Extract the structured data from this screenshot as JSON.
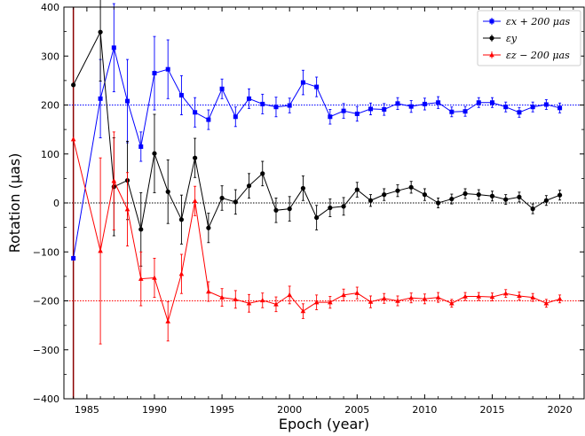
{
  "chart_data": {
    "type": "line",
    "xlabel": "Epoch (year)",
    "ylabel": "Rotation (μas)",
    "xlim": [
      1983.3,
      2021.8
    ],
    "ylim": [
      -400,
      400
    ],
    "x_ticks": [
      1985,
      1990,
      1995,
      2000,
      2005,
      2010,
      2015,
      2020
    ],
    "x_tick_labels": [
      "1985",
      "1990",
      "1995",
      "2000",
      "2005",
      "2010",
      "2015",
      "2020"
    ],
    "y_ticks": [
      -400,
      -300,
      -200,
      -100,
      0,
      100,
      200,
      300,
      400
    ],
    "y_tick_labels": [
      "−400",
      "−300",
      "−200",
      "−100",
      "0",
      "100",
      "200",
      "300",
      "400"
    ],
    "reference_lines": [
      {
        "y": 200,
        "color": "#0000ff",
        "style": "dotted"
      },
      {
        "y": 0,
        "color": "#000000",
        "style": "dotted"
      },
      {
        "y": -200,
        "color": "#ff0000",
        "style": "dotted"
      }
    ],
    "vertical_line": {
      "x": 1984,
      "color": "#8b0000"
    },
    "legend_position": "top-right",
    "series": [
      {
        "name": "εx + 200 μas",
        "color": "#0000ff",
        "marker": "square",
        "x": [
          1984,
          1986,
          1987,
          1988,
          1989,
          1990,
          1991,
          1992,
          1993,
          1994,
          1995,
          1996,
          1997,
          1998,
          1999,
          2000,
          2001,
          2002,
          2003,
          2004,
          2005,
          2006,
          2007,
          2008,
          2009,
          2010,
          2011,
          2012,
          2013,
          2014,
          2015,
          2016,
          2017,
          2018,
          2019,
          2020
        ],
        "y": [
          -113,
          213,
          317,
          208,
          115,
          265,
          273,
          220,
          185,
          170,
          233,
          176,
          213,
          202,
          196,
          199,
          246,
          237,
          176,
          188,
          182,
          192,
          191,
          203,
          197,
          202,
          205,
          186,
          187,
          205,
          205,
          196,
          185,
          196,
          201,
          194
        ],
        "err": [
          0,
          80,
          90,
          85,
          30,
          75,
          60,
          40,
          30,
          20,
          20,
          20,
          20,
          20,
          20,
          15,
          25,
          20,
          15,
          15,
          15,
          12,
          12,
          12,
          12,
          12,
          12,
          10,
          10,
          10,
          10,
          10,
          10,
          10,
          10,
          10
        ]
      },
      {
        "name": "εy",
        "color": "#000000",
        "marker": "circle",
        "x": [
          1984,
          1986,
          1987,
          1988,
          1989,
          1990,
          1991,
          1992,
          1993,
          1994,
          1995,
          1996,
          1997,
          1998,
          1999,
          2000,
          2001,
          2002,
          2003,
          2004,
          2005,
          2006,
          2007,
          2008,
          2009,
          2010,
          2011,
          2012,
          2013,
          2014,
          2015,
          2016,
          2017,
          2018,
          2019,
          2020
        ],
        "y": [
          241,
          349,
          33,
          46,
          -54,
          101,
          23,
          -34,
          92,
          -51,
          10,
          2,
          35,
          60,
          -15,
          -12,
          30,
          -30,
          -10,
          -7,
          27,
          5,
          17,
          25,
          32,
          17,
          0,
          8,
          19,
          17,
          14,
          7,
          12,
          -12,
          5,
          16
        ],
        "err": [
          0,
          100,
          100,
          80,
          75,
          80,
          65,
          50,
          40,
          30,
          25,
          25,
          25,
          25,
          25,
          25,
          25,
          25,
          18,
          18,
          15,
          12,
          12,
          12,
          12,
          12,
          10,
          10,
          10,
          10,
          10,
          10,
          10,
          10,
          10,
          10
        ]
      },
      {
        "name": "εz − 200 μas",
        "color": "#ff0000",
        "marker": "triangle",
        "x": [
          1984,
          1986,
          1987,
          1988,
          1989,
          1990,
          1991,
          1992,
          1993,
          1994,
          1995,
          1996,
          1997,
          1998,
          1999,
          2000,
          2001,
          2002,
          2003,
          2004,
          2005,
          2006,
          2007,
          2008,
          2009,
          2010,
          2011,
          2012,
          2013,
          2014,
          2015,
          2016,
          2017,
          2018,
          2019,
          2020
        ],
        "y": [
          130,
          -98,
          45,
          -13,
          -155,
          -153,
          -242,
          -145,
          4,
          -181,
          -193,
          -197,
          -205,
          -199,
          -207,
          -188,
          -221,
          -203,
          -203,
          -188,
          -184,
          -202,
          -195,
          -200,
          -194,
          -196,
          -193,
          -205,
          -191,
          -191,
          -192,
          -185,
          -190,
          -193,
          -205,
          -196
        ],
        "err": [
          0,
          190,
          100,
          75,
          55,
          40,
          40,
          40,
          30,
          20,
          18,
          18,
          18,
          15,
          15,
          18,
          15,
          15,
          12,
          12,
          12,
          12,
          10,
          10,
          10,
          10,
          10,
          8,
          8,
          8,
          8,
          8,
          8,
          8,
          8,
          8
        ]
      }
    ]
  }
}
